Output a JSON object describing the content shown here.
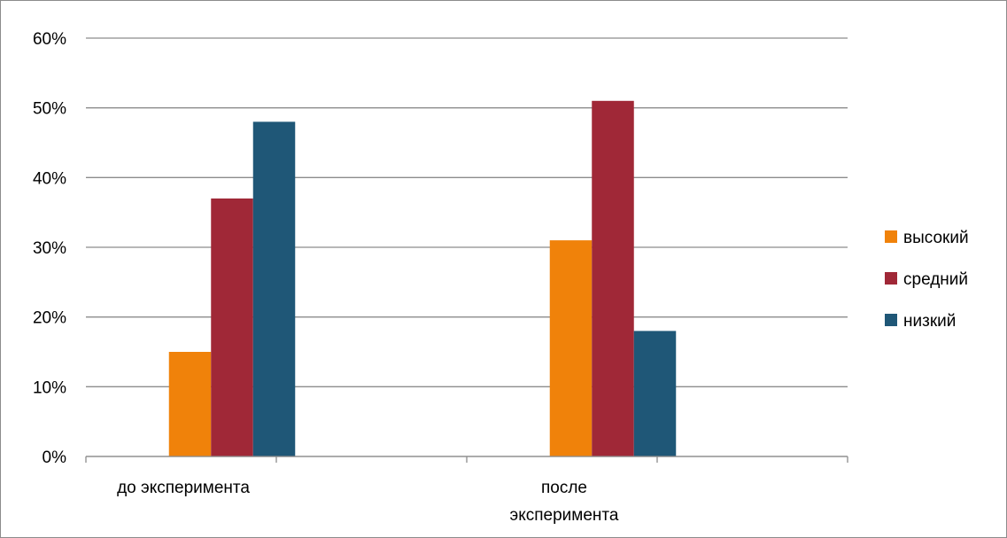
{
  "chart_data": {
    "type": "bar",
    "title": "",
    "xlabel": "",
    "ylabel": "",
    "categories": [
      [
        "до эксперимента"
      ],
      [
        "после",
        "эксперимента"
      ]
    ],
    "series": [
      {
        "name": "высокий",
        "color": "#F0820A",
        "values": [
          0.15,
          0.31
        ]
      },
      {
        "name": "средний",
        "color": "#A02837",
        "values": [
          0.37,
          0.51
        ]
      },
      {
        "name": "низкий",
        "color": "#1F5777",
        "values": [
          0.48,
          0.18
        ]
      }
    ],
    "ylim": [
      0,
      0.6
    ],
    "yticks": [
      0,
      0.1,
      0.2,
      0.3,
      0.4,
      0.5,
      0.6
    ],
    "ytick_labels": [
      "0%",
      "10%",
      "20%",
      "30%",
      "40%",
      "50%",
      "60%"
    ],
    "grid": true,
    "gridline_color": "#8c8c8c",
    "legend_position": "right"
  }
}
